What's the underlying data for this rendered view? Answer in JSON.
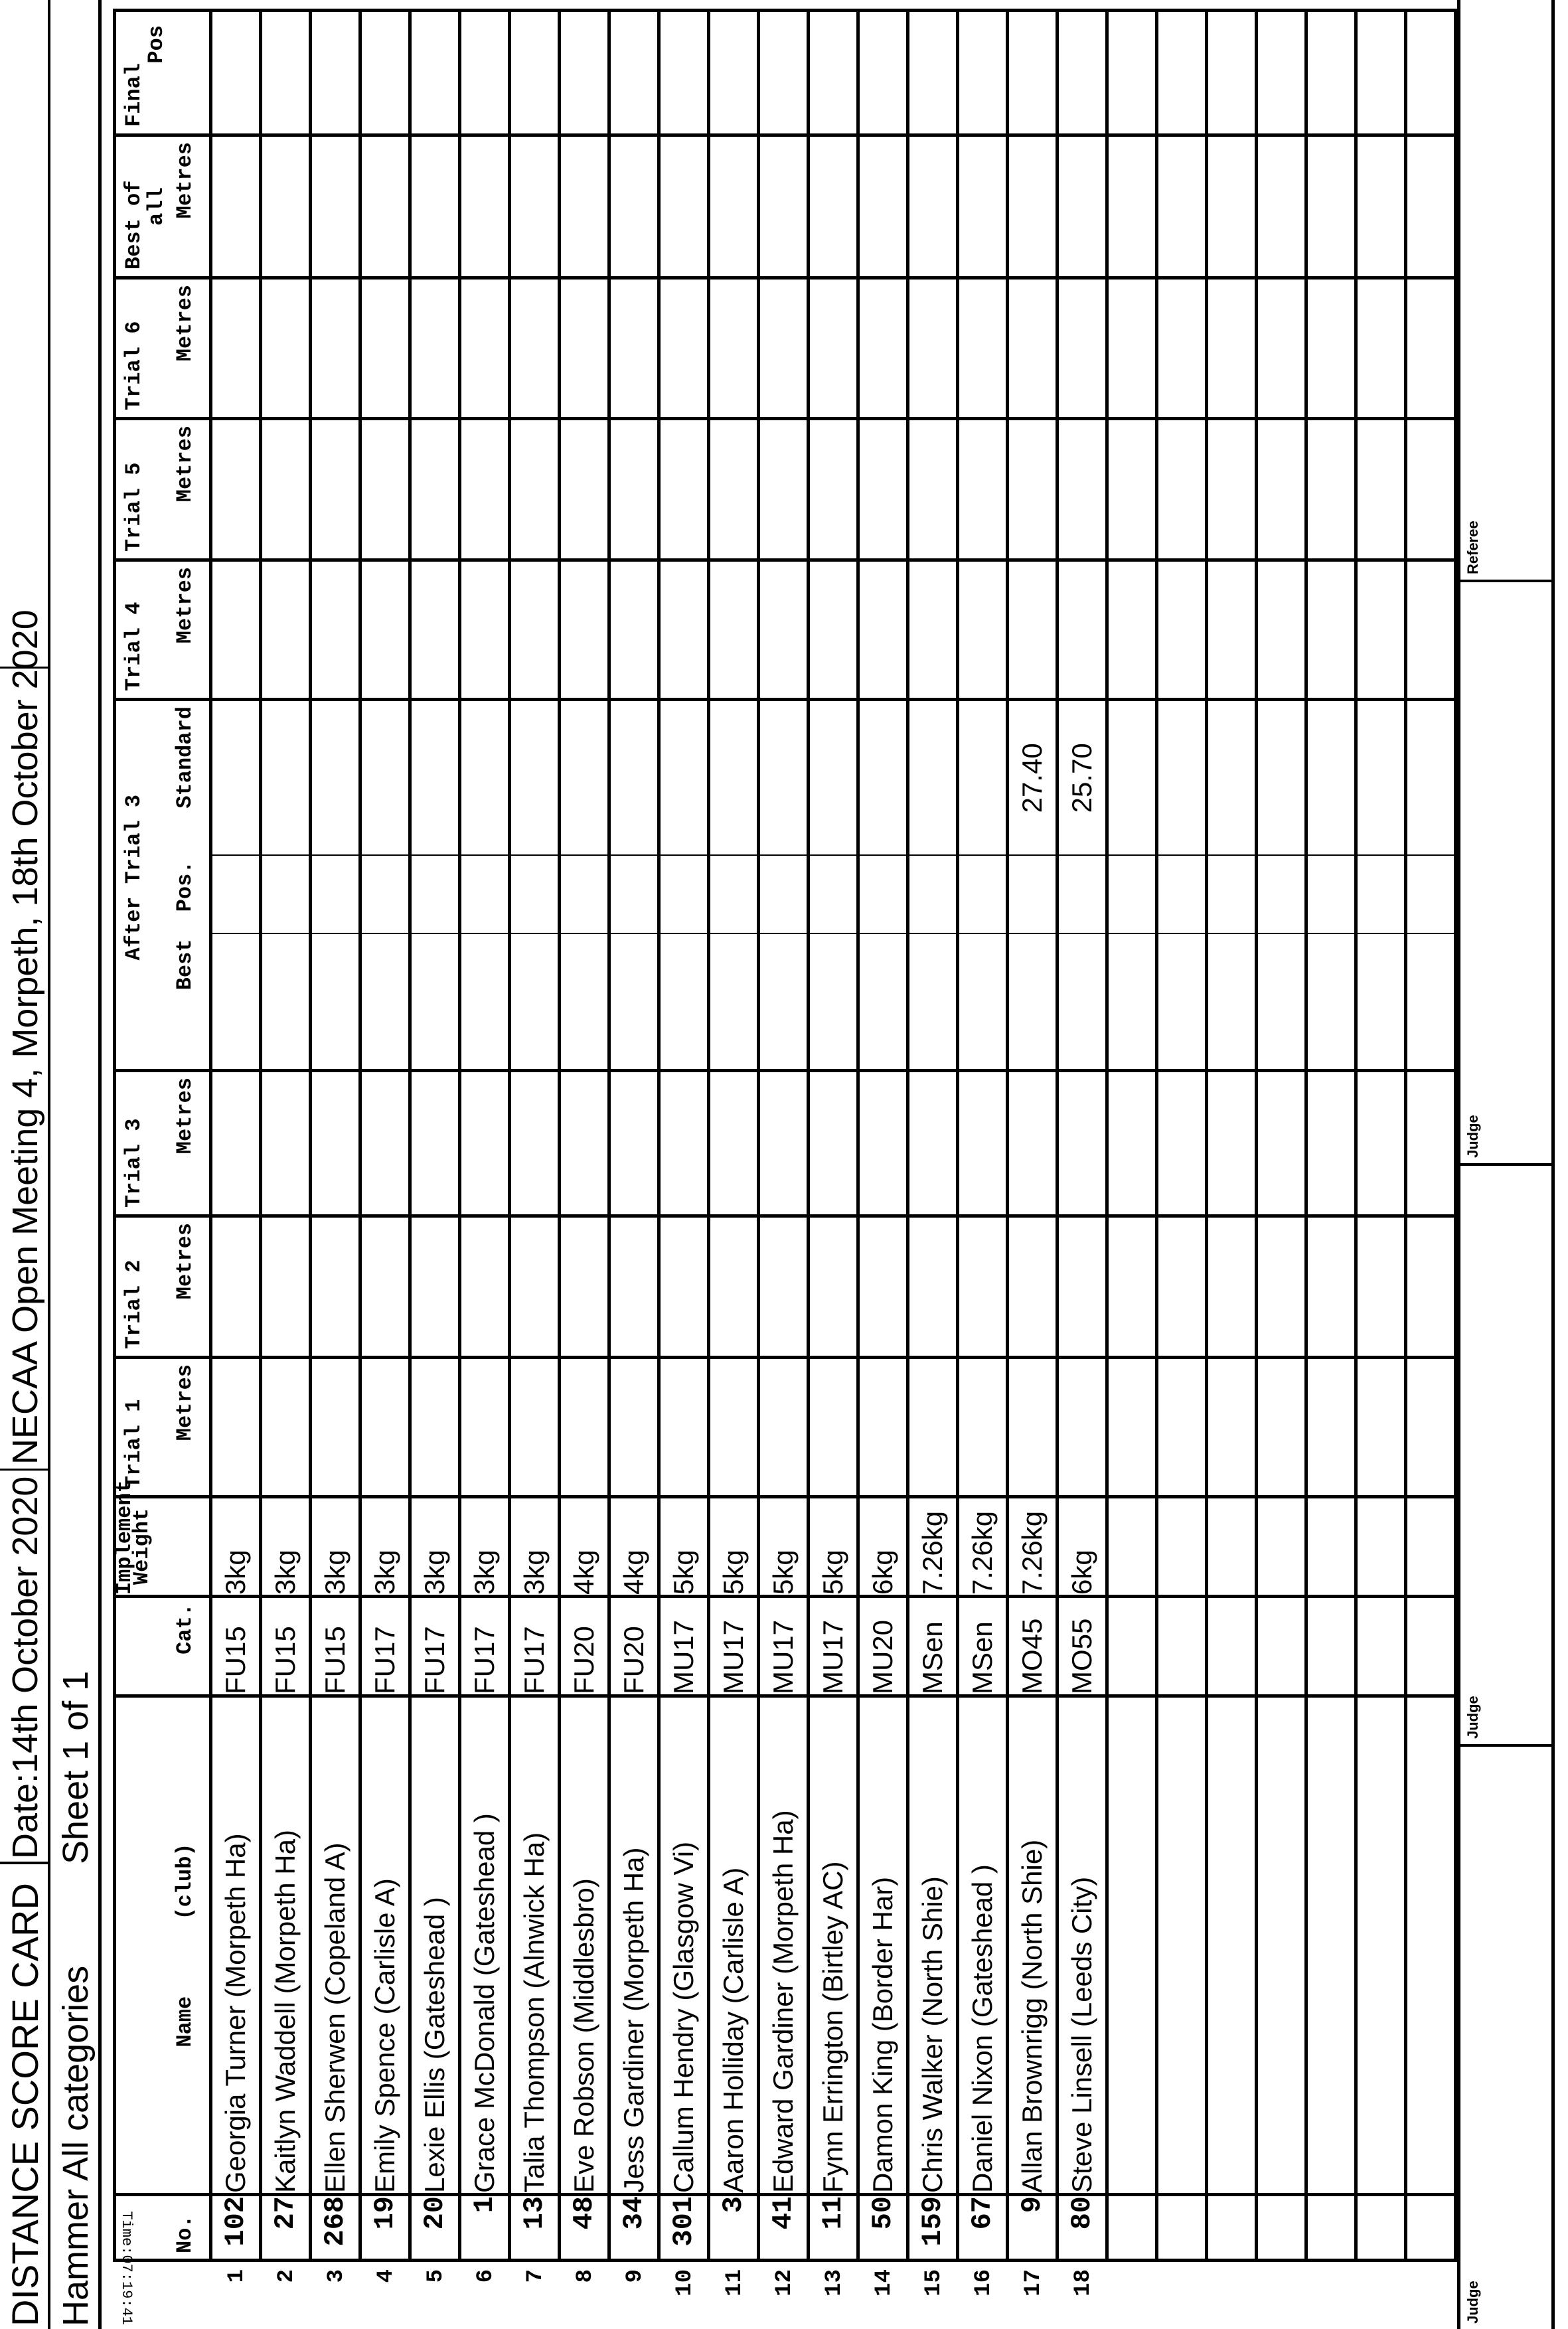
{
  "header": {
    "title": "DISTANCE SCORE CARD",
    "date": "Date:14th October 2020",
    "meeting": "NECAA Open Meeting 4, Morpeth, 18th October 2020",
    "event": "Hammer All categories",
    "sheet": "Sheet 1 of 1",
    "time": "Time:07:19:41"
  },
  "columns": {
    "no": "No.",
    "name": "Name      (club)",
    "cat": "Cat.",
    "implement_1": "Implement",
    "implement_2": "Weight",
    "trial1": "Trial 1",
    "trial2": "Trial 2",
    "trial3": "Trial 3",
    "after_trial3": "After Trial 3",
    "best": "Best",
    "pos": "Pos.",
    "standard": "Standard",
    "trial4": "Trial 4",
    "trial5": "Trial 5",
    "trial6": "Trial 6",
    "best_of_1": "Best of",
    "best_of_2": "all",
    "final_1": "Final",
    "final_2": "Pos",
    "metres": "Metres"
  },
  "rows": [
    {
      "line": "1",
      "no": "102",
      "name": "Georgia Turner (Morpeth Ha)",
      "cat": "FU15",
      "weight": "3kg",
      "standard": ""
    },
    {
      "line": "2",
      "no": "27",
      "name": "Kaitlyn Waddell (Morpeth Ha)",
      "cat": "FU15",
      "weight": "3kg",
      "standard": ""
    },
    {
      "line": "3",
      "no": "268",
      "name": "Ellen Sherwen (Copeland A)",
      "cat": "FU15",
      "weight": "3kg",
      "standard": ""
    },
    {
      "line": "4",
      "no": "19",
      "name": "Emily Spence (Carlisle A)",
      "cat": "FU17",
      "weight": "3kg",
      "standard": ""
    },
    {
      "line": "5",
      "no": "20",
      "name": "Lexie Ellis (Gateshead )",
      "cat": "FU17",
      "weight": "3kg",
      "standard": ""
    },
    {
      "line": "6",
      "no": "1",
      "name": "Grace McDonald (Gateshead )",
      "cat": "FU17",
      "weight": "3kg",
      "standard": ""
    },
    {
      "line": "7",
      "no": "13",
      "name": "Talia Thompson (Alnwick Ha)",
      "cat": "FU17",
      "weight": "3kg",
      "standard": ""
    },
    {
      "line": "8",
      "no": "48",
      "name": "Eve Robson (Middlesbro)",
      "cat": "FU20",
      "weight": "4kg",
      "standard": ""
    },
    {
      "line": "9",
      "no": "34",
      "name": "Jess Gardiner (Morpeth Ha)",
      "cat": "FU20",
      "weight": "4kg",
      "standard": ""
    },
    {
      "line": "10",
      "no": "301",
      "name": "Callum Hendry (Glasgow Vi)",
      "cat": "MU17",
      "weight": "5kg",
      "standard": ""
    },
    {
      "line": "11",
      "no": "3",
      "name": "Aaron Holliday (Carlisle A)",
      "cat": "MU17",
      "weight": "5kg",
      "standard": ""
    },
    {
      "line": "12",
      "no": "41",
      "name": "Edward Gardiner (Morpeth Ha)",
      "cat": "MU17",
      "weight": "5kg",
      "standard": ""
    },
    {
      "line": "13",
      "no": "11",
      "name": "Fynn Errington (Birtley AC)",
      "cat": "MU17",
      "weight": "5kg",
      "standard": ""
    },
    {
      "line": "14",
      "no": "50",
      "name": "Damon King (Border Har)",
      "cat": "MU20",
      "weight": "6kg",
      "standard": ""
    },
    {
      "line": "15",
      "no": "159",
      "name": "Chris Walker (North Shie)",
      "cat": "MSen",
      "weight": "7.26kg",
      "standard": ""
    },
    {
      "line": "16",
      "no": "67",
      "name": "Daniel Nixon (Gateshead )",
      "cat": "MSen",
      "weight": "7.26kg",
      "standard": ""
    },
    {
      "line": "17",
      "no": "9",
      "name": "Allan Brownrigg (North Shie)",
      "cat": "MO45",
      "weight": "7.26kg",
      "standard": "27.40"
    },
    {
      "line": "18",
      "no": "80",
      "name": "Steve Linsell (Leeds City)",
      "cat": "MO55",
      "weight": "6kg",
      "standard": "25.70"
    }
  ],
  "footer": {
    "officials": [
      "Judge",
      "Judge",
      "Judge",
      "Referee"
    ]
  }
}
